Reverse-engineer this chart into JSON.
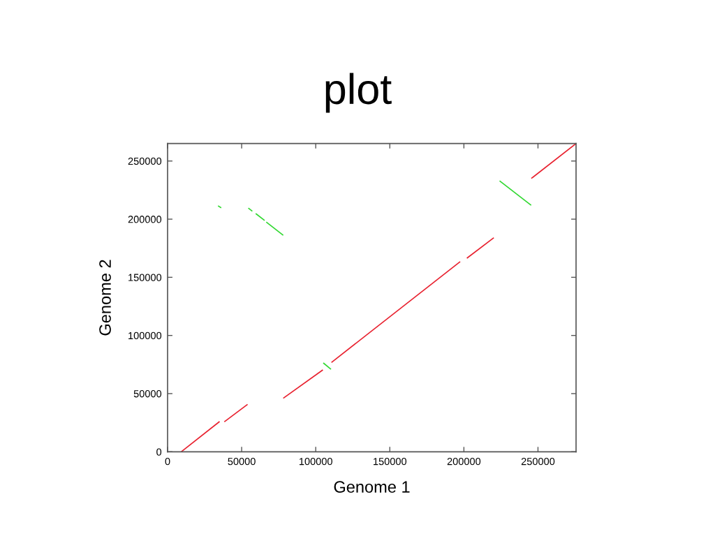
{
  "chart_data": {
    "type": "line",
    "title": "plot",
    "xlabel": "Genome 1",
    "ylabel": "Genome 2",
    "xlim": [
      0,
      275700
    ],
    "ylim": [
      0,
      265000
    ],
    "xticks": [
      0,
      50000,
      100000,
      150000,
      200000,
      250000
    ],
    "yticks": [
      0,
      50000,
      100000,
      150000,
      200000,
      250000
    ],
    "grid": false,
    "marker": "none",
    "line_style": "solid",
    "series": [
      {
        "color": "#e8202e",
        "x": [
          9200,
          35100
        ],
        "values": [
          0,
          26000
        ]
      },
      {
        "color": "#e8202e",
        "x": [
          38300,
          54000
        ],
        "values": [
          25800,
          40800
        ]
      },
      {
        "color": "#e8202e",
        "x": [
          78070,
          104800
        ],
        "values": [
          46000,
          70400
        ]
      },
      {
        "color": "#e8202e",
        "x": [
          110600,
          197500
        ],
        "values": [
          76800,
          163500
        ]
      },
      {
        "color": "#e8202e",
        "x": [
          202000,
          220200
        ],
        "values": [
          166400,
          184000
        ]
      },
      {
        "color": "#e8202e",
        "x": [
          245500,
          275700
        ],
        "values": [
          235000,
          265000
        ]
      },
      {
        "color": "#30d830",
        "x": [
          105100,
          110300
        ],
        "values": [
          76400,
          70900
        ]
      },
      {
        "color": "#30d830",
        "x": [
          34050,
          36200
        ],
        "values": [
          211500,
          209800
        ]
      },
      {
        "color": "#30d830",
        "x": [
          54500,
          57200
        ],
        "values": [
          209500,
          206800
        ]
      },
      {
        "color": "#30d830",
        "x": [
          59500,
          65500
        ],
        "values": [
          204800,
          198900
        ]
      },
      {
        "color": "#30d830",
        "x": [
          66600,
          78060
        ],
        "values": [
          197500,
          186100
        ]
      },
      {
        "color": "#30d830",
        "x": [
          224100,
          245400
        ],
        "values": [
          232900,
          211900
        ]
      }
    ]
  }
}
